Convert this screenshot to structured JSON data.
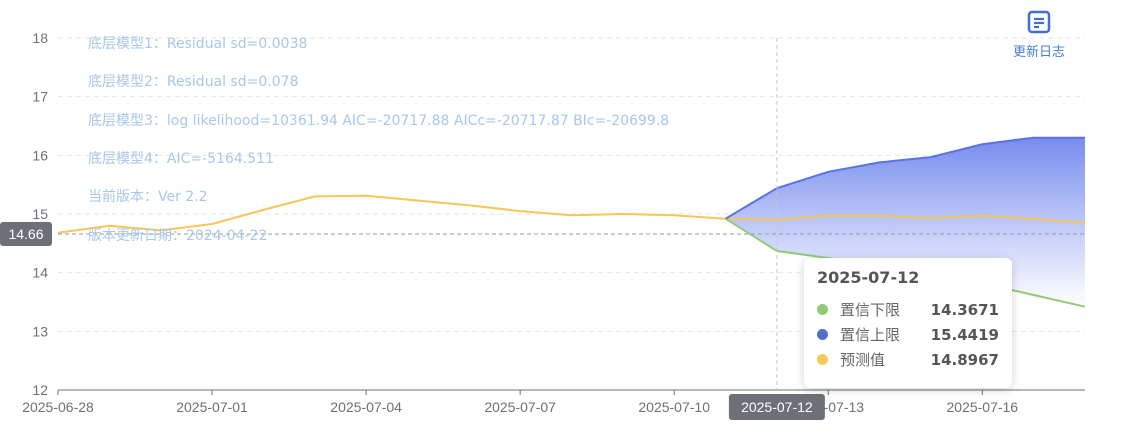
{
  "info_lines": [
    "底层模型1：Residual sd=0.0038",
    "底层模型2：Residual sd=0.078",
    "底层模型3：log likelihood=10361.94 AIC=-20717.88 AICc=-20717.87 BIc=-20699.8",
    "底层模型4：AIC=-5164.511",
    "当前版本：Ver 2.2",
    "版本更新日期：2024-04-22"
  ],
  "toolbar": {
    "changelog_label": "更新日志",
    "changelog_icon": "document-icon"
  },
  "pointer": {
    "y_value": "14.66",
    "x_value": "2025-07-12"
  },
  "tooltip": {
    "title": "2025-07-12",
    "rows": [
      {
        "name": "置信下限",
        "value": "14.3671",
        "color": "#91cc75"
      },
      {
        "name": "置信上限",
        "value": "15.4419",
        "color": "#5470c6"
      },
      {
        "name": "预测值",
        "value": "14.8967",
        "color": "#fac858"
      }
    ]
  },
  "chart_data": {
    "type": "line",
    "x": [
      "2025-06-28",
      "2025-06-29",
      "2025-06-30",
      "2025-07-01",
      "2025-07-02",
      "2025-07-03",
      "2025-07-04",
      "2025-07-05",
      "2025-07-06",
      "2025-07-07",
      "2025-07-08",
      "2025-07-09",
      "2025-07-10",
      "2025-07-11",
      "2025-07-12",
      "2025-07-13",
      "2025-07-14",
      "2025-07-15",
      "2025-07-16",
      "2025-07-17",
      "2025-07-18"
    ],
    "x_tick_labels": [
      "2025-06-28",
      "2025-07-01",
      "2025-07-04",
      "2025-07-07",
      "2025-07-10",
      "2025-07-13",
      "2025-07-16"
    ],
    "ylim": [
      12,
      18
    ],
    "y_ticks": [
      12,
      13,
      14,
      15,
      16,
      17,
      18
    ],
    "grid": true,
    "series": [
      {
        "name": "预测值",
        "color": "#f5c65a",
        "values": [
          14.68,
          14.8,
          14.72,
          14.83,
          15.07,
          15.3,
          15.31,
          15.23,
          15.15,
          15.05,
          14.98,
          15.0,
          14.98,
          14.92,
          14.9,
          14.97,
          14.97,
          14.93,
          14.97,
          14.92,
          14.84
        ]
      },
      {
        "name": "置信下限",
        "color": "#91cc75",
        "values": [
          null,
          null,
          null,
          null,
          null,
          null,
          null,
          null,
          null,
          null,
          null,
          null,
          null,
          14.92,
          14.37,
          14.25,
          14.08,
          13.88,
          13.82,
          13.62,
          13.42
        ]
      },
      {
        "name": "置信上限",
        "color": "#5b73e0",
        "values": [
          null,
          null,
          null,
          null,
          null,
          null,
          null,
          null,
          null,
          null,
          null,
          null,
          null,
          14.92,
          15.44,
          15.72,
          15.88,
          15.97,
          16.19,
          16.3,
          16.3
        ]
      }
    ]
  }
}
